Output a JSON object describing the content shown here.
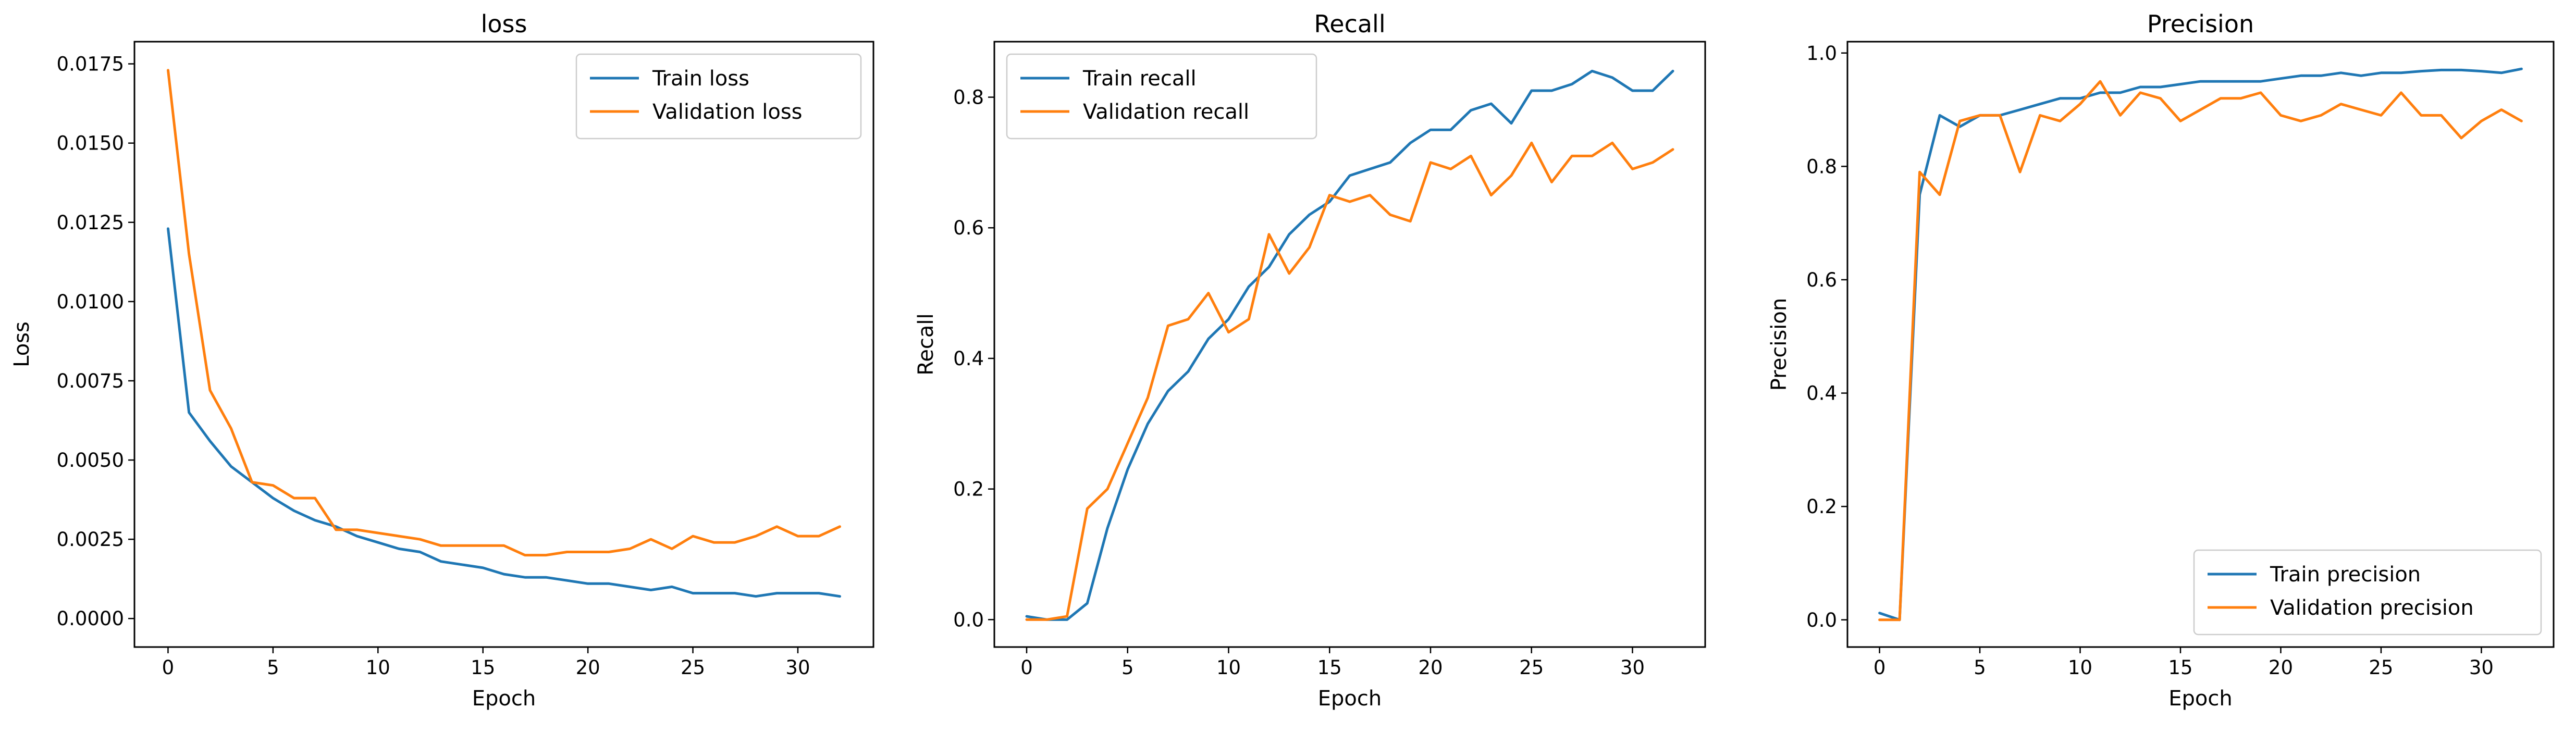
{
  "colors": {
    "train": "#1f77b4",
    "validation": "#ff7f0e"
  },
  "chart_data": [
    {
      "type": "line",
      "title": "loss",
      "xlabel": "Epoch",
      "ylabel": "Loss",
      "xlim": [
        -1.6,
        33.6
      ],
      "ylim": [
        -0.0009,
        0.0182
      ],
      "xticks": [
        0,
        5,
        10,
        15,
        20,
        25,
        30
      ],
      "yticks": [
        0.0,
        0.0025,
        0.005,
        0.0075,
        0.01,
        0.0125,
        0.015,
        0.0175
      ],
      "ytick_labels": [
        "0.0000",
        "0.0025",
        "0.0050",
        "0.0075",
        "0.0100",
        "0.0125",
        "0.0150",
        "0.0175"
      ],
      "legend_loc": "upper right",
      "x": [
        0,
        1,
        2,
        3,
        4,
        5,
        6,
        7,
        8,
        9,
        10,
        11,
        12,
        13,
        14,
        15,
        16,
        17,
        18,
        19,
        20,
        21,
        22,
        23,
        24,
        25,
        26,
        27,
        28,
        29,
        30,
        31,
        32
      ],
      "series": [
        {
          "name": "Train loss",
          "color_key": "train",
          "values": [
            0.0123,
            0.0065,
            0.0056,
            0.0048,
            0.0043,
            0.0038,
            0.0034,
            0.0031,
            0.0029,
            0.0026,
            0.0024,
            0.0022,
            0.0021,
            0.0018,
            0.0017,
            0.0016,
            0.0014,
            0.0013,
            0.0013,
            0.0012,
            0.0011,
            0.0011,
            0.001,
            0.0009,
            0.001,
            0.0008,
            0.0008,
            0.0008,
            0.0007,
            0.0008,
            0.0008,
            0.0008,
            0.0007
          ]
        },
        {
          "name": "Validation loss",
          "color_key": "validation",
          "values": [
            0.0173,
            0.0115,
            0.0072,
            0.006,
            0.0043,
            0.0042,
            0.0038,
            0.0038,
            0.0028,
            0.0028,
            0.0027,
            0.0026,
            0.0025,
            0.0023,
            0.0023,
            0.0023,
            0.0023,
            0.002,
            0.002,
            0.0021,
            0.0021,
            0.0021,
            0.0022,
            0.0025,
            0.0022,
            0.0026,
            0.0024,
            0.0024,
            0.0026,
            0.0029,
            0.0026,
            0.0026,
            0.0029
          ]
        }
      ]
    },
    {
      "type": "line",
      "title": "Recall",
      "xlabel": "Epoch",
      "ylabel": "Recall",
      "xlim": [
        -1.6,
        33.6
      ],
      "ylim": [
        -0.042,
        0.885
      ],
      "xticks": [
        0,
        5,
        10,
        15,
        20,
        25,
        30
      ],
      "yticks": [
        0.0,
        0.2,
        0.4,
        0.6,
        0.8
      ],
      "ytick_labels": [
        "0.0",
        "0.2",
        "0.4",
        "0.6",
        "0.8"
      ],
      "legend_loc": "upper left",
      "x": [
        0,
        1,
        2,
        3,
        4,
        5,
        6,
        7,
        8,
        9,
        10,
        11,
        12,
        13,
        14,
        15,
        16,
        17,
        18,
        19,
        20,
        21,
        22,
        23,
        24,
        25,
        26,
        27,
        28,
        29,
        30,
        31,
        32
      ],
      "series": [
        {
          "name": "Train recall",
          "color_key": "train",
          "values": [
            0.005,
            0.0,
            0.0,
            0.025,
            0.14,
            0.23,
            0.3,
            0.35,
            0.38,
            0.43,
            0.46,
            0.51,
            0.54,
            0.59,
            0.62,
            0.64,
            0.68,
            0.69,
            0.7,
            0.73,
            0.75,
            0.75,
            0.78,
            0.79,
            0.76,
            0.81,
            0.81,
            0.82,
            0.84,
            0.83,
            0.81,
            0.81,
            0.84
          ]
        },
        {
          "name": "Validation recall",
          "color_key": "validation",
          "values": [
            0.0,
            0.0,
            0.005,
            0.17,
            0.2,
            0.27,
            0.34,
            0.45,
            0.46,
            0.5,
            0.44,
            0.46,
            0.59,
            0.53,
            0.57,
            0.65,
            0.64,
            0.65,
            0.62,
            0.61,
            0.7,
            0.69,
            0.71,
            0.65,
            0.68,
            0.73,
            0.67,
            0.71,
            0.71,
            0.73,
            0.69,
            0.7,
            0.72
          ]
        }
      ]
    },
    {
      "type": "line",
      "title": "Precision",
      "xlabel": "Epoch",
      "ylabel": "Precision",
      "xlim": [
        -1.6,
        33.6
      ],
      "ylim": [
        -0.048,
        1.02
      ],
      "xticks": [
        0,
        5,
        10,
        15,
        20,
        25,
        30
      ],
      "yticks": [
        0.0,
        0.2,
        0.4,
        0.6,
        0.8,
        1.0
      ],
      "ytick_labels": [
        "0.0",
        "0.2",
        "0.4",
        "0.6",
        "0.8",
        "1.0"
      ],
      "legend_loc": "lower right",
      "x": [
        0,
        1,
        2,
        3,
        4,
        5,
        6,
        7,
        8,
        9,
        10,
        11,
        12,
        13,
        14,
        15,
        16,
        17,
        18,
        19,
        20,
        21,
        22,
        23,
        24,
        25,
        26,
        27,
        28,
        29,
        30,
        31,
        32
      ],
      "series": [
        {
          "name": "Train precision",
          "color_key": "train",
          "values": [
            0.012,
            0.0,
            0.75,
            0.89,
            0.87,
            0.89,
            0.89,
            0.9,
            0.91,
            0.92,
            0.92,
            0.93,
            0.93,
            0.94,
            0.94,
            0.945,
            0.95,
            0.95,
            0.95,
            0.95,
            0.955,
            0.96,
            0.96,
            0.965,
            0.96,
            0.965,
            0.965,
            0.968,
            0.97,
            0.97,
            0.968,
            0.965,
            0.972
          ]
        },
        {
          "name": "Validation precision",
          "color_key": "validation",
          "values": [
            0.0,
            0.0,
            0.79,
            0.75,
            0.88,
            0.89,
            0.89,
            0.79,
            0.89,
            0.88,
            0.91,
            0.95,
            0.89,
            0.93,
            0.92,
            0.88,
            0.9,
            0.92,
            0.92,
            0.93,
            0.89,
            0.88,
            0.89,
            0.91,
            0.9,
            0.89,
            0.93,
            0.89,
            0.89,
            0.85,
            0.88,
            0.9,
            0.88
          ]
        }
      ]
    }
  ]
}
